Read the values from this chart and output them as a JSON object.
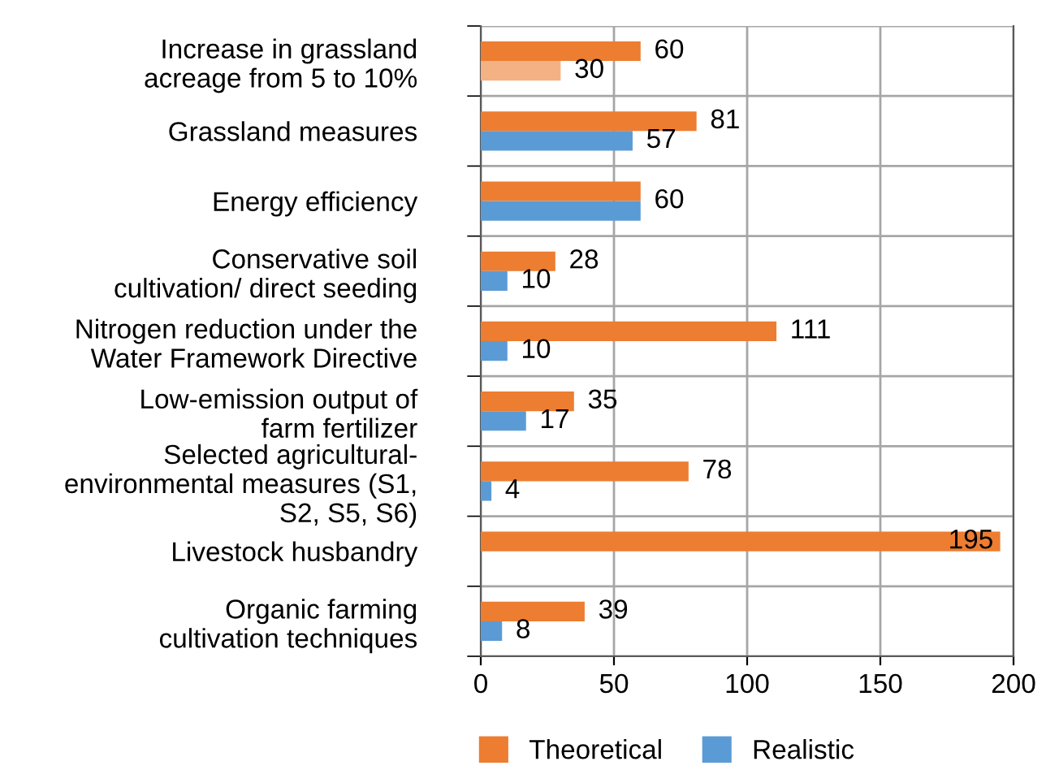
{
  "chart_data": {
    "type": "bar",
    "orientation": "horizontal",
    "categories": [
      "Increase in grassland\nacreage from 5 to 10%",
      "Grassland measures",
      "Energy efficiency",
      "Conservative soil\ncultivation/ direct seeding",
      "Nitrogen reduction under the\nWater Framework Directive",
      "Low-emission output of\nfarm fertilizer",
      "Selected agricultural-\nenvironmental measures (S1,\nS2, S5, S6)",
      "Livestock husbandry",
      "Organic farming\ncultivation techniques"
    ],
    "series": [
      {
        "name": "Theoretical",
        "color": "#ed7d31",
        "values": [
          60,
          81,
          60,
          28,
          111,
          35,
          78,
          195,
          39
        ],
        "value_labels": [
          "60",
          "81",
          "60",
          "28",
          "111",
          "35",
          "78",
          "195",
          "39"
        ]
      },
      {
        "name": "Realistic",
        "color": "#5b9bd5",
        "colors": [
          "#f4b183",
          "#5b9bd5",
          "#5b9bd5",
          "#5b9bd5",
          "#5b9bd5",
          "#5b9bd5",
          "#5b9bd5",
          "#5b9bd5",
          "#5b9bd5"
        ],
        "values": [
          30,
          57,
          60,
          10,
          10,
          17,
          4,
          null,
          8
        ],
        "value_labels": [
          "30",
          "57",
          null,
          "10",
          "10",
          "17",
          "4",
          null,
          "8"
        ]
      }
    ],
    "xlim": [
      0,
      200
    ],
    "xticks": [
      0,
      50,
      100,
      150,
      200
    ],
    "grid": true,
    "legend": "bottom"
  }
}
